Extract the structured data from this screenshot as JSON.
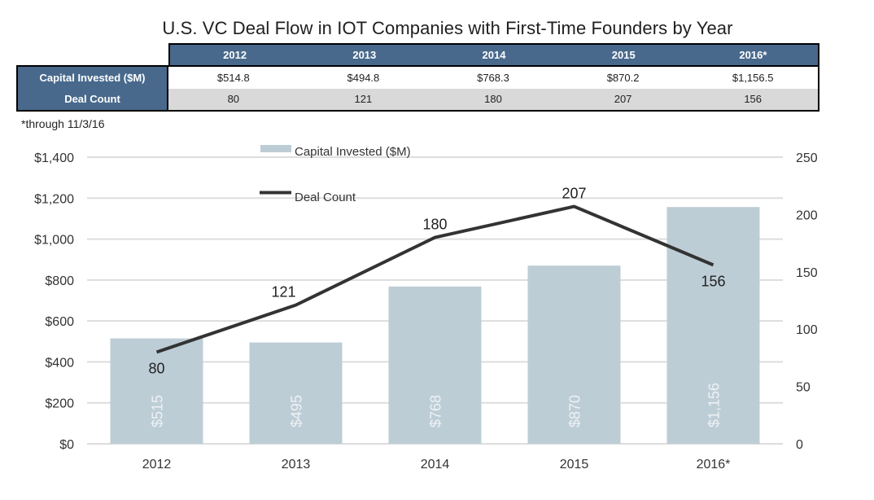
{
  "title": "U.S. VC Deal Flow in IOT Companies with First-Time Founders by Year",
  "table": {
    "columns": [
      "2012",
      "2013",
      "2014",
      "2015",
      "2016*"
    ],
    "rows": [
      {
        "label": "Capital Invested ($M)",
        "values": [
          "$514.8",
          "$494.8",
          "$768.3",
          "$870.2",
          "$1,156.5"
        ]
      },
      {
        "label": "Deal Count",
        "values": [
          "80",
          "121",
          "180",
          "207",
          "156"
        ]
      }
    ]
  },
  "footnote": "*through 11/3/16",
  "colors": {
    "table_header": "#48698c",
    "bar": "#bdcdd6",
    "line": "#333333",
    "grid": "#dddddd"
  },
  "chart_data": {
    "type": "bar",
    "title": "U.S. VC Deal Flow in IOT Companies with First-Time Founders by Year",
    "categories": [
      "2012",
      "2013",
      "2014",
      "2015",
      "2016*"
    ],
    "series": [
      {
        "name": "Capital Invested ($M)",
        "type": "bar",
        "axis": "left",
        "values": [
          514.8,
          494.8,
          768.3,
          870.2,
          1156.5
        ],
        "labels": [
          "$515",
          "$495",
          "$768",
          "$870",
          "$1,156"
        ]
      },
      {
        "name": "Deal Count",
        "type": "line",
        "axis": "right",
        "values": [
          80,
          121,
          180,
          207,
          156
        ],
        "labels": [
          "80",
          "121",
          "180",
          "207",
          "156"
        ]
      }
    ],
    "ylim": [
      0,
      1400
    ],
    "yticks": [
      0,
      200,
      400,
      600,
      800,
      1000,
      1200,
      1400
    ],
    "ytick_labels": [
      "$0",
      "$200",
      "$400",
      "$600",
      "$800",
      "$1,000",
      "$1,200",
      "$1,400"
    ],
    "y2lim": [
      0,
      250
    ],
    "y2ticks": [
      0,
      50,
      100,
      150,
      200,
      250
    ],
    "y2tick_labels": [
      "0",
      "50",
      "100",
      "150",
      "200",
      "250"
    ],
    "xlabel": "",
    "ylabel": "",
    "y2label": "",
    "grid": true,
    "legend": {
      "position": "top-center",
      "entries": [
        "Capital Invested ($M)",
        "Deal Count"
      ]
    }
  }
}
